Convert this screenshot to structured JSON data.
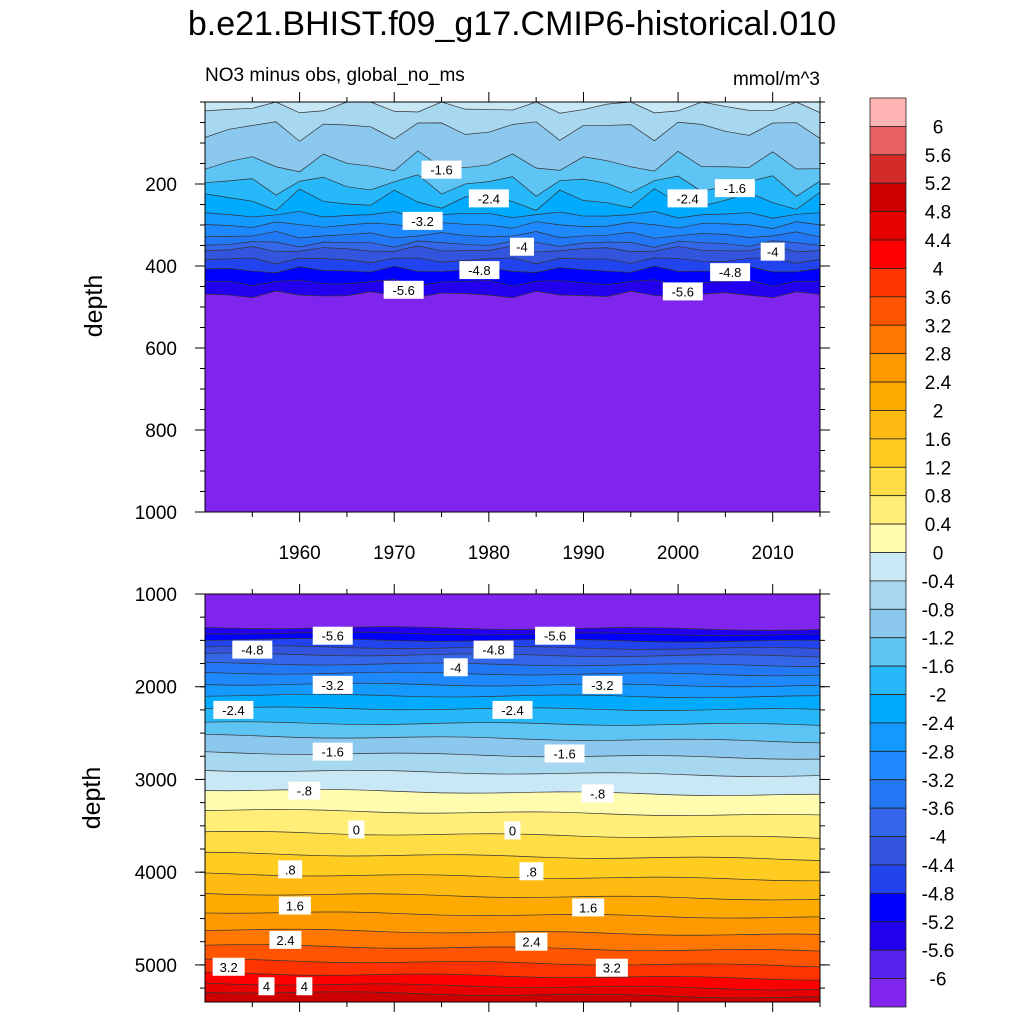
{
  "figure_title": "b.e21.BHIST.f09_g17.CMIP6-historical.010",
  "colorbar": {
    "labels": [
      "6",
      "5.6",
      "5.2",
      "4.8",
      "4.4",
      "4",
      "3.6",
      "3.2",
      "2.8",
      "2.4",
      "2",
      "1.6",
      "1.2",
      "0.8",
      "0.4",
      "0",
      "-0.4",
      "-0.8",
      "-1.2",
      "-1.6",
      "-2",
      "-2.4",
      "-2.8",
      "-3.2",
      "-3.6",
      "-4",
      "-4.4",
      "-4.8",
      "-5.2",
      "-5.6",
      "-6"
    ],
    "colors": [
      "#ffb3b3",
      "#e86060",
      "#d42a2a",
      "#cc0000",
      "#e60000",
      "#ff0000",
      "#ff3300",
      "#ff5500",
      "#ff7700",
      "#ff9900",
      "#ffaa00",
      "#ffbb11",
      "#ffcc22",
      "#ffdd44",
      "#ffee77",
      "#fffcb0",
      "#c8e8f6",
      "#a8d8f0",
      "#8cc8ee",
      "#5ec4f4",
      "#26b8f8",
      "#00aaff",
      "#1499ff",
      "#1e88ff",
      "#2277f5",
      "#3366e8",
      "#3355dd",
      "#2244ee",
      "#0000ff",
      "#2200ee",
      "#5522ee",
      "#8025ee"
    ]
  },
  "chart_data": [
    {
      "type": "contour",
      "subtitle_left": "NO3 minus obs, global_no_ms",
      "subtitle_right": "mmol/m^3",
      "xlabel": "",
      "ylabel": "depth",
      "xlim": [
        1950,
        2015
      ],
      "ylim": [
        1000,
        0
      ],
      "x_ticks": [
        "1960",
        "1970",
        "1980",
        "1990",
        "2000",
        "2010"
      ],
      "y_ticks": [
        "200",
        "400",
        "600",
        "800",
        "1000"
      ],
      "contour_levels": [
        -6,
        -5.6,
        -5.2,
        -4.8,
        -4.4,
        -4,
        -3.6,
        -3.2,
        -2.8,
        -2.4,
        -2,
        -1.6,
        -1.2,
        -0.8
      ],
      "level_depths": {
        "-0.8": 10,
        "-1.2": 65,
        "-1.6": 150,
        "-2": 200,
        "-2.4": 240,
        "-2.8": 275,
        "-3.2": 300,
        "-3.6": 325,
        "-4": 345,
        "-4.4": 360,
        "-4.8": 385,
        "-5.2": 410,
        "-5.6": 440,
        "-6": 470
      },
      "contour_labels": [
        {
          "text": "-1.6",
          "x": 1975,
          "y": 165
        },
        {
          "text": "-1.6",
          "x": 2006,
          "y": 210
        },
        {
          "text": "-2.4",
          "x": 1980,
          "y": 235
        },
        {
          "text": "-2.4",
          "x": 2001,
          "y": 235
        },
        {
          "text": "-3.2",
          "x": 1973,
          "y": 290
        },
        {
          "text": "-4",
          "x": 1983.5,
          "y": 353
        },
        {
          "text": "-4",
          "x": 2010,
          "y": 365
        },
        {
          "text": "-4.8",
          "x": 1979,
          "y": 410
        },
        {
          "text": "-4.8",
          "x": 2005.5,
          "y": 415
        },
        {
          "text": "-5.6",
          "x": 1971,
          "y": 458
        },
        {
          "text": "-5.6",
          "x": 2000.5,
          "y": 462
        }
      ]
    },
    {
      "type": "contour",
      "xlabel": "",
      "ylabel": "depth",
      "xlim": [
        1950,
        2015
      ],
      "ylim": [
        1000,
        5400
      ],
      "y_ticks": [
        "1000",
        "2000",
        "3000",
        "4000",
        "5000"
      ],
      "contour_levels": [
        -6,
        -5.6,
        -5.2,
        -4.8,
        -4.4,
        -4,
        -3.6,
        -3.2,
        -2.8,
        -2.4,
        -2,
        -1.6,
        -1.2,
        -0.8,
        -0.4,
        0,
        0.4,
        0.8,
        1.2,
        1.6,
        2,
        2.4,
        2.8,
        3.2,
        3.6,
        4,
        4.4
      ],
      "level_depths": {
        "-6": 1370,
        "-5.6": 1430,
        "-5.2": 1500,
        "-4.8": 1580,
        "-4.4": 1660,
        "-4": 1760,
        "-3.6": 1860,
        "-3.2": 1980,
        "-2.8": 2100,
        "-2.4": 2240,
        "-2": 2400,
        "-1.6": 2560,
        "-1.2": 2740,
        "-0.8": 2930,
        "-0.4": 3140,
        "0": 3360,
        "0.4": 3600,
        "0.8": 3830,
        "1.2": 4050,
        "1.6": 4260,
        "2": 4460,
        "2.4": 4650,
        "2.8": 4820,
        "3.2": 4980,
        "3.6": 5120,
        "4": 5230,
        "4.4": 5320
      },
      "contour_labels": [
        {
          "text": "-5.6",
          "x": 1963.5,
          "y": 1450
        },
        {
          "text": "-5.6",
          "x": 1987,
          "y": 1450
        },
        {
          "text": "-4.8",
          "x": 1955,
          "y": 1600
        },
        {
          "text": "-4.8",
          "x": 1980.5,
          "y": 1600
        },
        {
          "text": "-4",
          "x": 1976.5,
          "y": 1790
        },
        {
          "text": "-3.2",
          "x": 1963.5,
          "y": 1980
        },
        {
          "text": "-3.2",
          "x": 1992,
          "y": 1980
        },
        {
          "text": "-2.4",
          "x": 1953,
          "y": 2250
        },
        {
          "text": "-2.4",
          "x": 1982.5,
          "y": 2250
        },
        {
          "text": "-1.6",
          "x": 1963.5,
          "y": 2700
        },
        {
          "text": "-1.6",
          "x": 1988,
          "y": 2720
        },
        {
          "text": "-.8",
          "x": 1960.5,
          "y": 3120
        },
        {
          "text": "-.8",
          "x": 1991.5,
          "y": 3150
        },
        {
          "text": "0",
          "x": 1966,
          "y": 3540
        },
        {
          "text": "0",
          "x": 1982.5,
          "y": 3550
        },
        {
          "text": ".8",
          "x": 1959,
          "y": 3970
        },
        {
          "text": ".8",
          "x": 1984.5,
          "y": 3990
        },
        {
          "text": "1.6",
          "x": 1959.5,
          "y": 4360
        },
        {
          "text": "1.6",
          "x": 1990.5,
          "y": 4380
        },
        {
          "text": "2.4",
          "x": 1958.5,
          "y": 4730
        },
        {
          "text": "2.4",
          "x": 1984.5,
          "y": 4750
        },
        {
          "text": "3.2",
          "x": 1952.5,
          "y": 5020
        },
        {
          "text": "3.2",
          "x": 1993,
          "y": 5030
        },
        {
          "text": "4",
          "x": 1956.5,
          "y": 5230
        },
        {
          "text": "4",
          "x": 1960.5,
          "y": 5230
        }
      ]
    }
  ]
}
